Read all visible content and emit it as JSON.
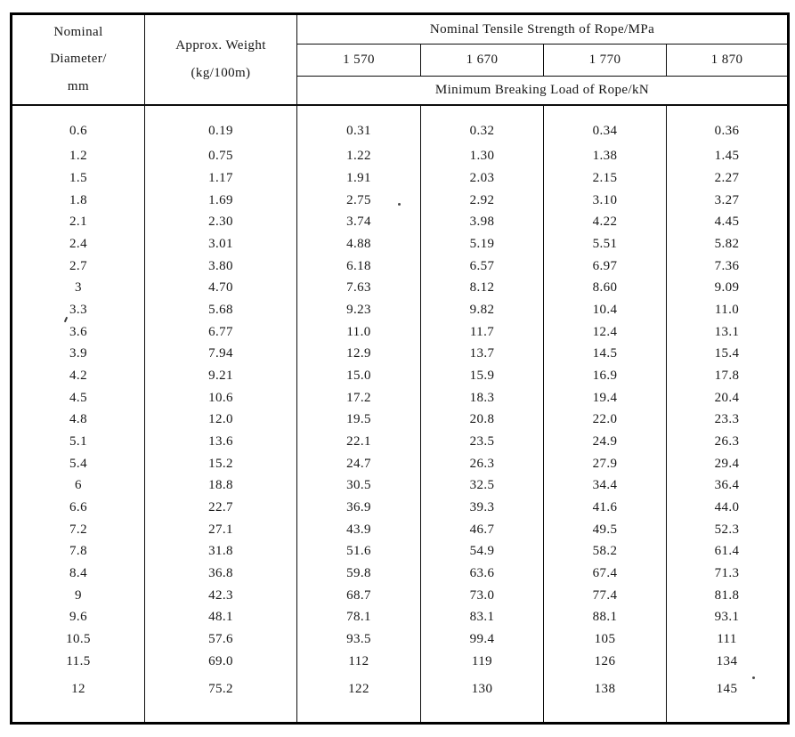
{
  "page": {
    "background": "#ffffff",
    "text_color": "#161616",
    "border_color": "#000000"
  },
  "table": {
    "header": {
      "diameter_label": "Nominal\nDiameter/\nmm",
      "weight_label": "Approx. Weight\n(kg/100m)",
      "tensile_label": "Nominal Tensile Strength of Rope/MPa",
      "strengths": [
        "1 570",
        "1 670",
        "1 770",
        "1 870"
      ],
      "breaking_label": "Minimum Breaking Load of Rope/kN"
    },
    "rows": [
      [
        "0.6",
        "0.19",
        "0.31",
        "0.32",
        "0.34",
        "0.36"
      ],
      [
        "1.2",
        "0.75",
        "1.22",
        "1.30",
        "1.38",
        "1.45"
      ],
      [
        "1.5",
        "1.17",
        "1.91",
        "2.03",
        "2.15",
        "2.27"
      ],
      [
        "1.8",
        "1.69",
        "2.75",
        "2.92",
        "3.10",
        "3.27"
      ],
      [
        "2.1",
        "2.30",
        "3.74",
        "3.98",
        "4.22",
        "4.45"
      ],
      [
        "2.4",
        "3.01",
        "4.88",
        "5.19",
        "5.51",
        "5.82"
      ],
      [
        "2.7",
        "3.80",
        "6.18",
        "6.57",
        "6.97",
        "7.36"
      ],
      [
        "3",
        "4.70",
        "7.63",
        "8.12",
        "8.60",
        "9.09"
      ],
      [
        "3.3",
        "5.68",
        "9.23",
        "9.82",
        "10.4",
        "11.0"
      ],
      [
        "3.6",
        "6.77",
        "11.0",
        "11.7",
        "12.4",
        "13.1"
      ],
      [
        "3.9",
        "7.94",
        "12.9",
        "13.7",
        "14.5",
        "15.4"
      ],
      [
        "4.2",
        "9.21",
        "15.0",
        "15.9",
        "16.9",
        "17.8"
      ],
      [
        "4.5",
        "10.6",
        "17.2",
        "18.3",
        "19.4",
        "20.4"
      ],
      [
        "4.8",
        "12.0",
        "19.5",
        "20.8",
        "22.0",
        "23.3"
      ],
      [
        "5.1",
        "13.6",
        "22.1",
        "23.5",
        "24.9",
        "26.3"
      ],
      [
        "5.4",
        "15.2",
        "24.7",
        "26.3",
        "27.9",
        "29.4"
      ],
      [
        "6",
        "18.8",
        "30.5",
        "32.5",
        "34.4",
        "36.4"
      ],
      [
        "6.6",
        "22.7",
        "36.9",
        "39.3",
        "41.6",
        "44.0"
      ],
      [
        "7.2",
        "27.1",
        "43.9",
        "46.7",
        "49.5",
        "52.3"
      ],
      [
        "7.8",
        "31.8",
        "51.6",
        "54.9",
        "58.2",
        "61.4"
      ],
      [
        "8.4",
        "36.8",
        "59.8",
        "63.6",
        "67.4",
        "71.3"
      ],
      [
        "9",
        "42.3",
        "68.7",
        "73.0",
        "77.4",
        "81.8"
      ],
      [
        "9.6",
        "48.1",
        "78.1",
        "83.1",
        "88.1",
        "93.1"
      ],
      [
        "10.5",
        "57.6",
        "93.5",
        "99.4",
        "105",
        "111"
      ],
      [
        "11.5",
        "69.0",
        "112",
        "119",
        "126",
        "134"
      ],
      [
        "12",
        "75.2",
        "122",
        "130",
        "138",
        "145"
      ]
    ]
  }
}
